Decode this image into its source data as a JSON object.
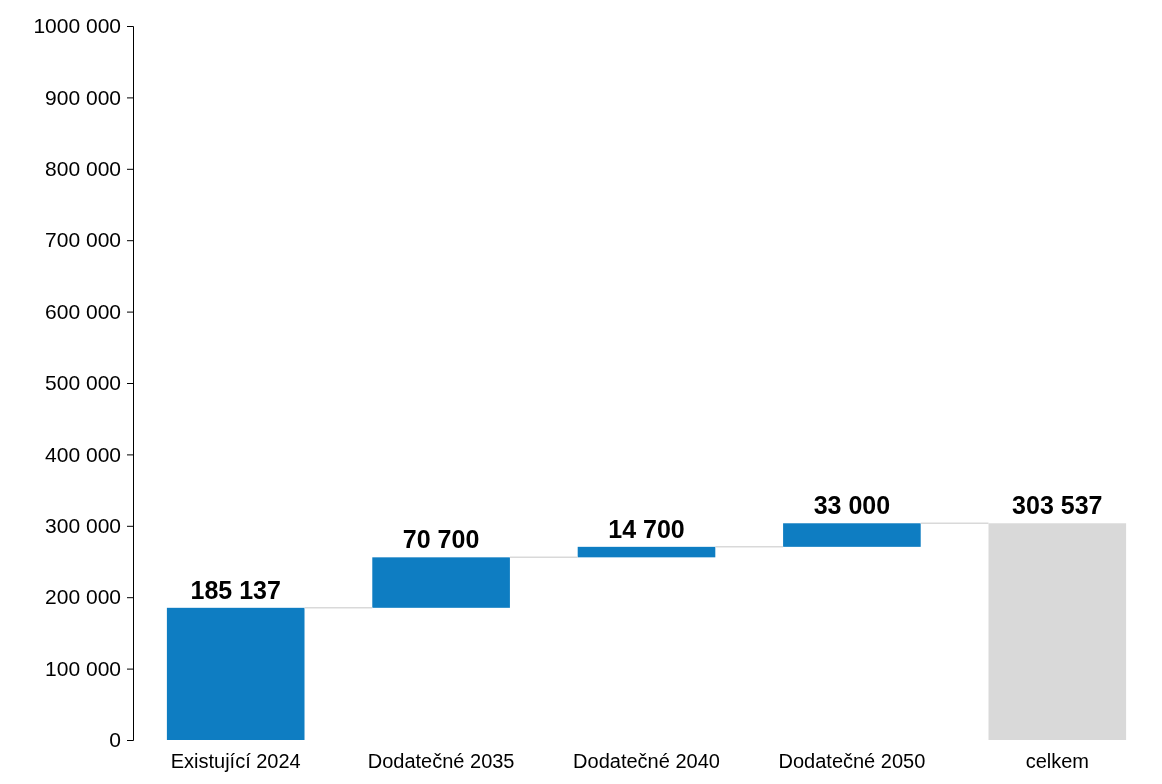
{
  "chart_data": {
    "type": "bar",
    "categories": [
      "Existující 2024",
      "Dodatečné 2035",
      "Dodatečné 2040",
      "Dodatečné 2050",
      "celkem"
    ],
    "values": [
      185137,
      70700,
      14700,
      33000,
      303537
    ],
    "base": [
      0,
      185137,
      255837,
      270537,
      0
    ],
    "colors": [
      "#0e7dc2",
      "#0e7dc2",
      "#0e7dc2",
      "#0e7dc2",
      "#d9d9d9"
    ],
    "value_labels": [
      "185 137",
      "70 700",
      "14 700",
      "33 000",
      "303 537"
    ],
    "ylim": [
      0,
      1000000
    ],
    "yticks": [
      0,
      {
        "value": 100000,
        "label": "100 000"
      },
      {
        "value": 200000,
        "label": "200 000"
      },
      {
        "value": 300000,
        "label": "300 000"
      },
      {
        "value": 400000,
        "label": "400 000"
      },
      {
        "value": 500000,
        "label": "500 000"
      },
      {
        "value": 600000,
        "label": "600 000"
      },
      {
        "value": 700000,
        "label": "700 000"
      },
      {
        "value": 800000,
        "label": "800 000"
      },
      {
        "value": 900000,
        "label": "900 000"
      },
      {
        "value": 1000000,
        "label": "1000 000"
      }
    ],
    "grid": false
  }
}
